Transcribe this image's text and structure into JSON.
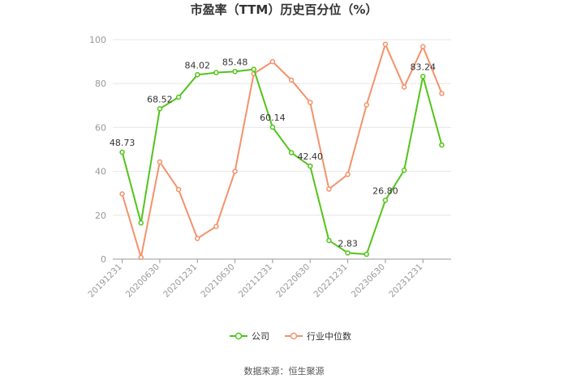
{
  "chart_data": {
    "type": "line",
    "title": "市盈率（TTM）历史百分位（%）",
    "xlabel": "",
    "ylabel": "",
    "ylim": [
      0,
      100
    ],
    "yticks": [
      0,
      20,
      40,
      60,
      80,
      100
    ],
    "grid": true,
    "legend_placement": "bottom-center",
    "x_tick_labels": [
      "20191231",
      "20200630",
      "20201231",
      "20210630",
      "20211231",
      "20220630",
      "20221231",
      "20230630",
      "20231231"
    ],
    "x_tick_indices": [
      0,
      2,
      4,
      6,
      8,
      10,
      12,
      14,
      16
    ],
    "series": [
      {
        "name": "公司",
        "color": "#52c41a",
        "values": [
          48.73,
          16.5,
          68.52,
          73.8,
          84.02,
          85.0,
          85.48,
          86.5,
          60.14,
          48.5,
          42.4,
          8.5,
          2.83,
          2.2,
          26.8,
          40.5,
          83.24,
          52.0
        ],
        "labels": {
          "0": "48.73",
          "2": "68.52",
          "4": "84.02",
          "6": "85.48",
          "8": "60.14",
          "10": "42.40",
          "12": "2.83",
          "14": "26.80",
          "16": "83.24"
        }
      },
      {
        "name": "行业中位数",
        "color": "#f4926b",
        "values": [
          29.7,
          0.8,
          44.3,
          31.7,
          9.4,
          14.9,
          40.0,
          84.5,
          90.0,
          81.6,
          71.4,
          31.9,
          38.6,
          70.3,
          97.9,
          78.4,
          96.8,
          75.5
        ]
      }
    ]
  },
  "legend": {
    "items": [
      {
        "label": "公司",
        "color": "#52c41a"
      },
      {
        "label": "行业中位数",
        "color": "#f4926b"
      }
    ]
  },
  "source": "数据来源：恒生聚源"
}
